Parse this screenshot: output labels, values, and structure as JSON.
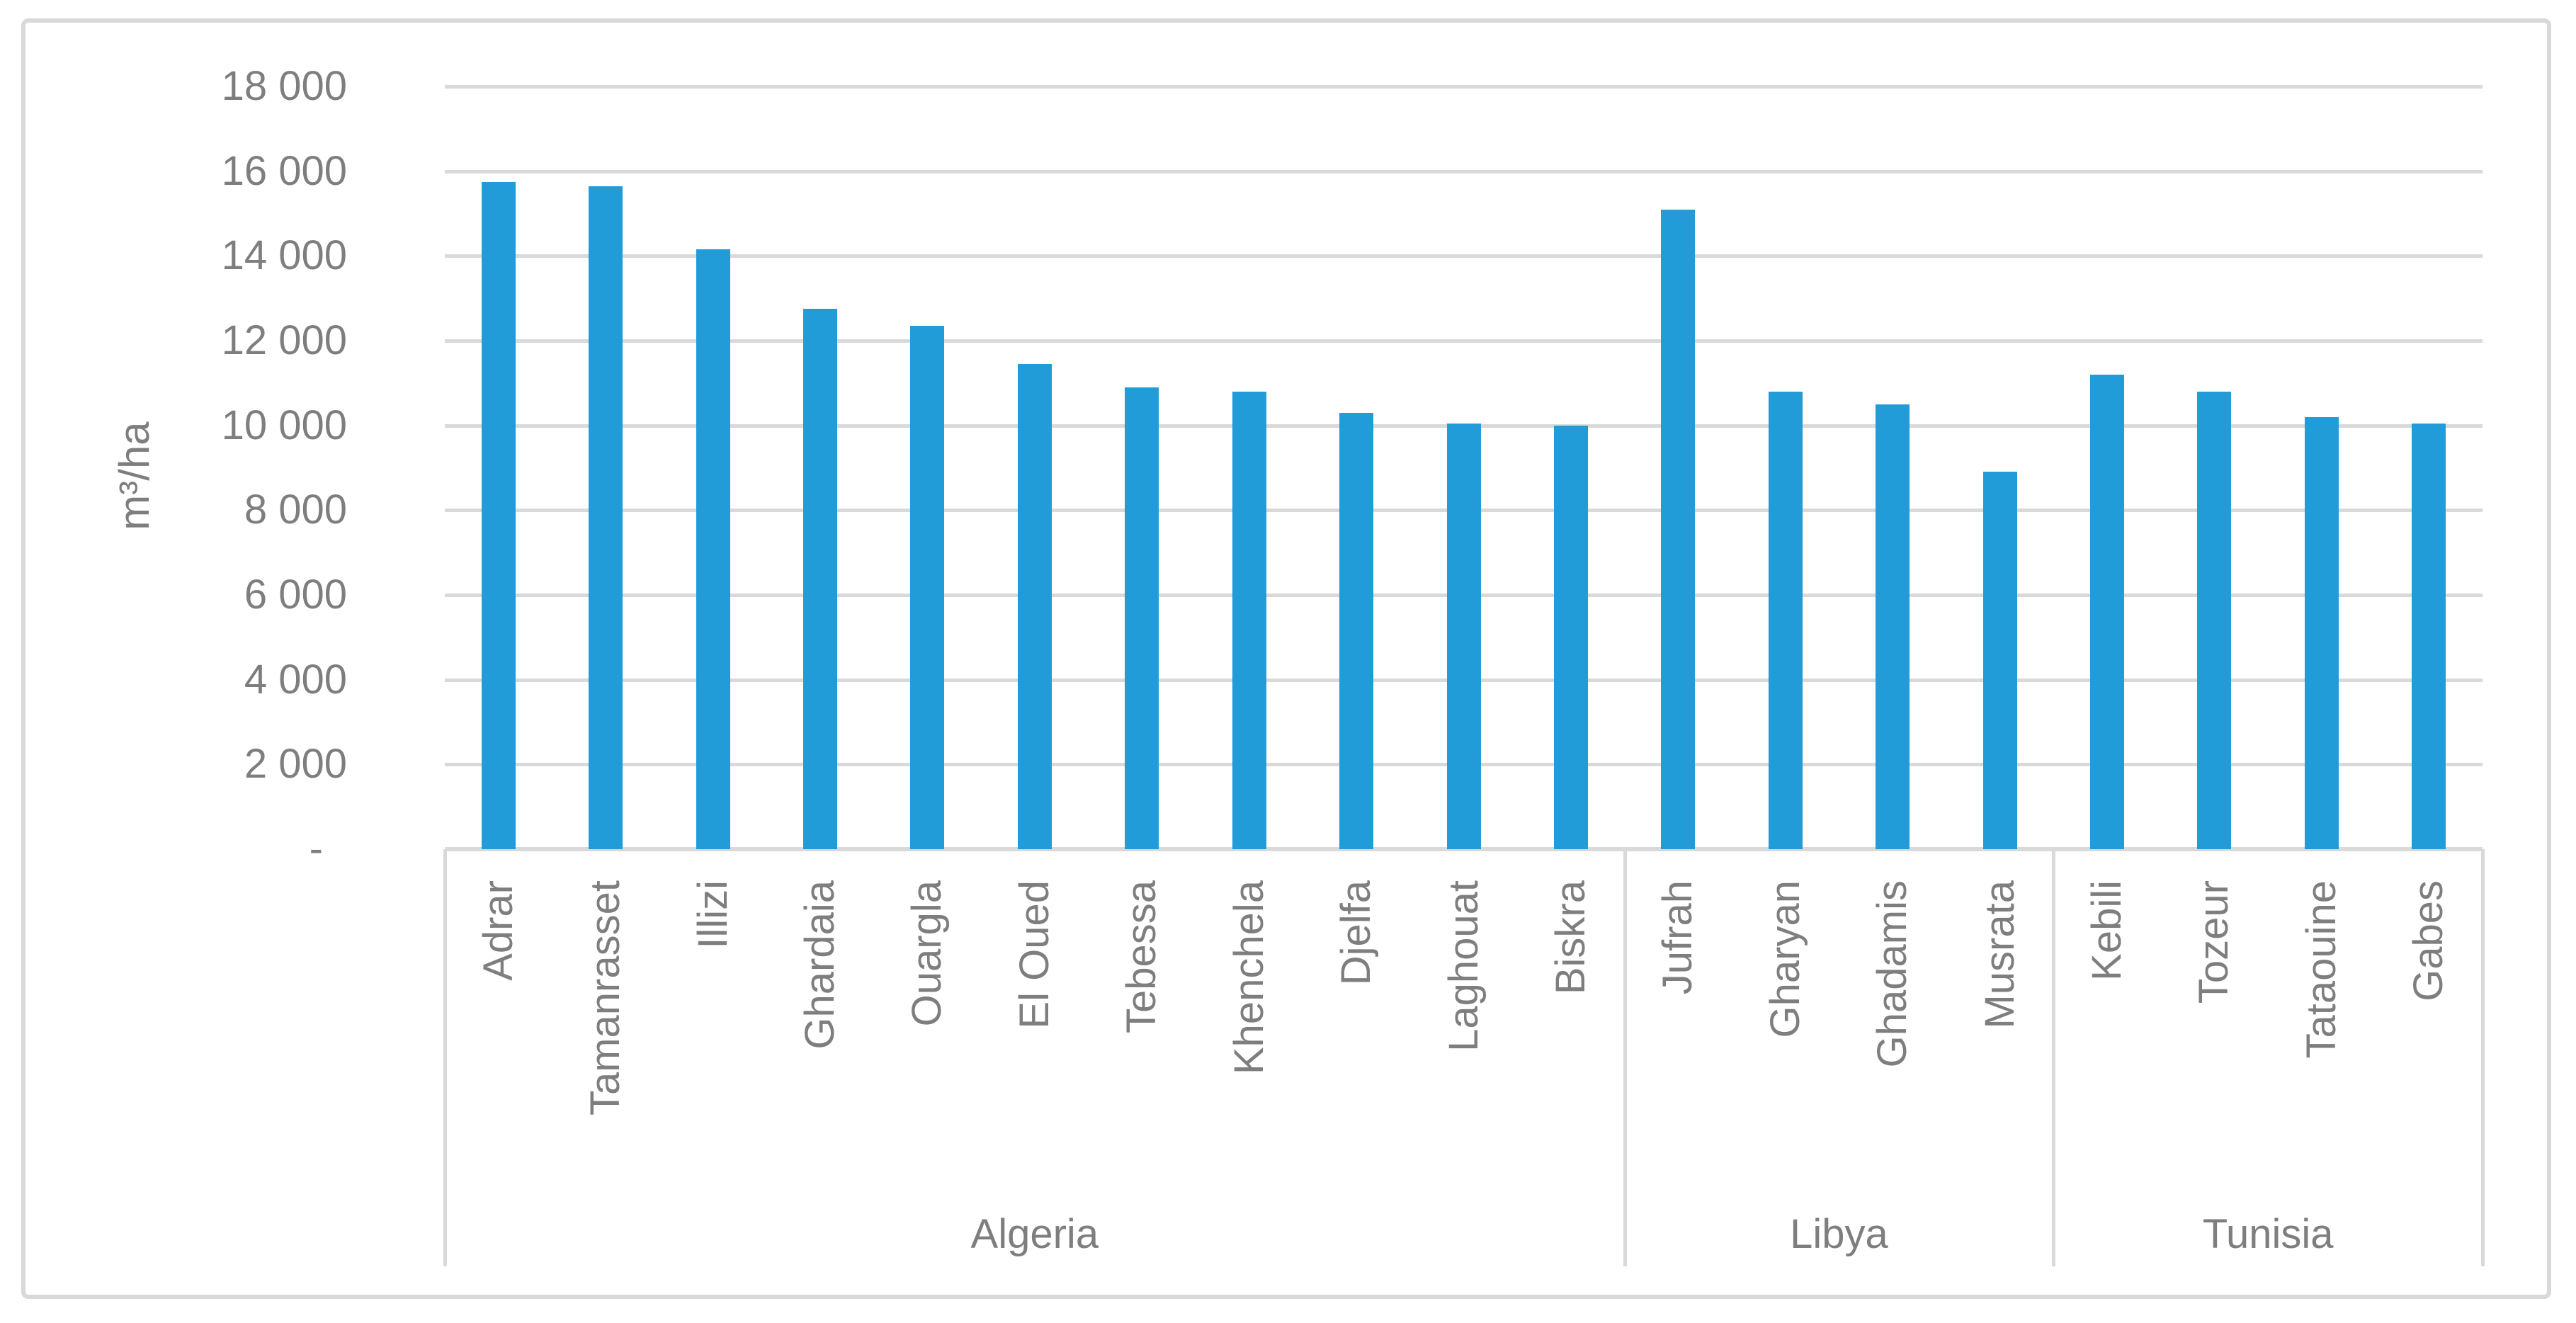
{
  "figure": {
    "background_color": "#ffffff",
    "border_color": "#d9d9d9",
    "gridline_color": "#d9d9d9",
    "text_color": "#7e7e7e",
    "bar_color": "#219cd8"
  },
  "y_axis": {
    "title": "m³/ha",
    "tick_labels": [
      "18 000",
      "16 000",
      "14 000",
      "12 000",
      "10 000",
      "8 000",
      "6 000",
      "4 000",
      "2 000"
    ],
    "zero_label": "-"
  },
  "chart_data": {
    "type": "bar",
    "title": "",
    "xlabel": "",
    "ylabel": "m³/ha",
    "ylim": [
      0,
      18000
    ],
    "ytick_interval": 2000,
    "grid": "horizontal",
    "legend": "none",
    "bar_color": "#219cd8",
    "categories": [
      "Adrar",
      "Tamanrasset",
      "Illizi",
      "Ghardaia",
      "Ouargla",
      "El Oued",
      "Tebessa",
      "Khenchela",
      "Djelfa",
      "Laghouat",
      "Biskra",
      "Jufrah",
      "Gharyan",
      "Ghadamis",
      "Musrata",
      "Kebili",
      "Tozeur",
      "Tataouine",
      "Gabes"
    ],
    "values": [
      15750,
      15650,
      14150,
      12750,
      12350,
      11450,
      10900,
      10800,
      10300,
      10050,
      10000,
      15100,
      10800,
      10500,
      8900,
      11200,
      10800,
      10200,
      10050
    ],
    "groups": [
      {
        "label": "Algeria",
        "count": 11
      },
      {
        "label": "Libya",
        "count": 4
      },
      {
        "label": "Tunisia",
        "count": 4
      }
    ]
  }
}
